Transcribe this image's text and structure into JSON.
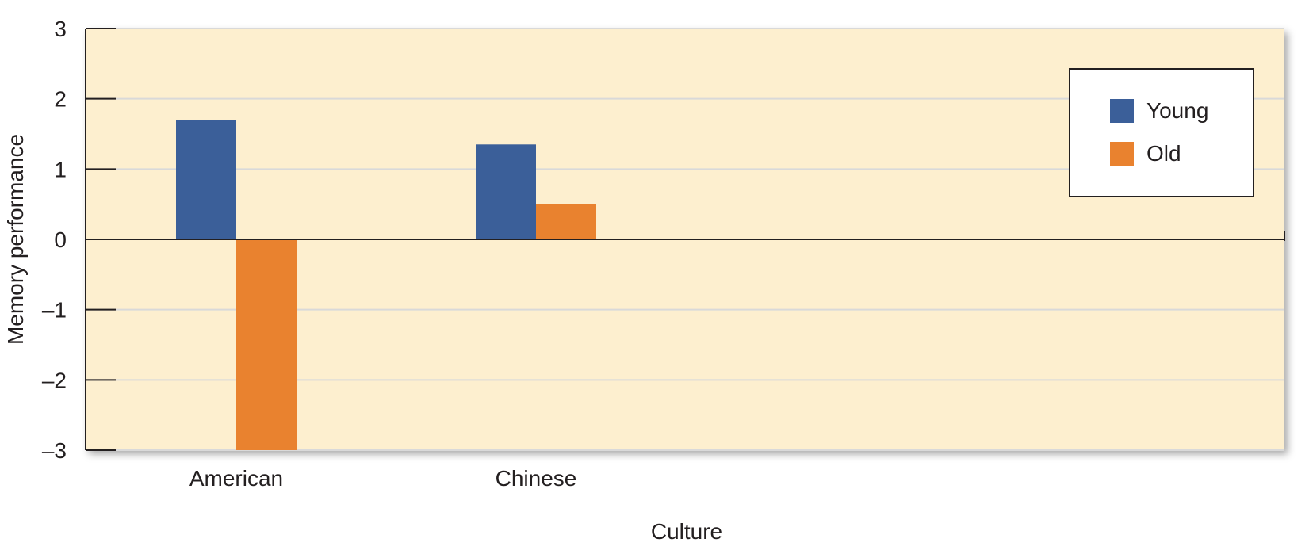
{
  "chart_data": {
    "type": "bar",
    "title": "",
    "xlabel": "Culture",
    "ylabel": "Memory performance",
    "categories": [
      "American",
      "Chinese"
    ],
    "series": [
      {
        "name": "Young",
        "values": [
          1.7,
          1.35
        ]
      },
      {
        "name": "Old",
        "values": [
          -3.0,
          0.5
        ]
      }
    ],
    "ylim": [
      -3,
      3
    ],
    "yticks": [
      3,
      2,
      1,
      0,
      -1,
      -2,
      -3
    ],
    "ytick_labels": [
      "3",
      "2",
      "1",
      "0",
      "–1",
      "–2",
      "–3"
    ],
    "grid": true,
    "legend": "top-right"
  },
  "colors": {
    "Young": "#3b5f99",
    "Old": "#e9822f",
    "plot_background": "#fdefcf",
    "gridline": "#d9d9d9"
  }
}
